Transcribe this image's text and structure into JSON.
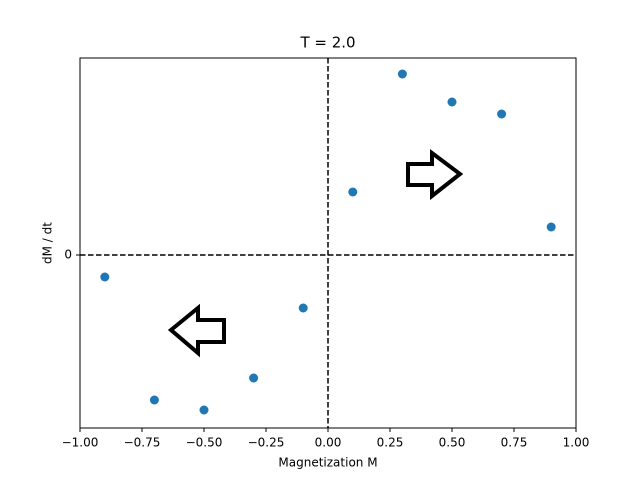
{
  "chart_data": {
    "type": "scatter",
    "title": "T = 2.0",
    "x_label": "Magnetization M",
    "y_label": "dM / dt",
    "x": [
      -0.9,
      -0.7,
      -0.5,
      -0.3,
      -0.1,
      0.1,
      0.3,
      0.5,
      0.7,
      0.9
    ],
    "values": [
      -0.22,
      -1.45,
      -1.55,
      -1.23,
      -0.53,
      0.63,
      1.81,
      1.53,
      1.41,
      0.28
    ],
    "color": "#1f77b4",
    "xlim": [
      -1,
      1
    ],
    "xticks": [
      {
        "value": -1,
        "label": "−1.00"
      },
      {
        "value": -0.75,
        "label": "−0.75"
      },
      {
        "value": -0.5,
        "label": "−0.50"
      },
      {
        "value": -0.25,
        "label": "−0.25"
      },
      {
        "value": 0,
        "label": "0.00"
      },
      {
        "value": 0.25,
        "label": "0.25"
      },
      {
        "value": 0.5,
        "label": "0.50"
      },
      {
        "value": 0.75,
        "label": "0.75"
      },
      {
        "value": 1,
        "label": "1.00"
      }
    ],
    "ylim": [
      -1.73,
      1.97
    ],
    "yticks": [
      0
    ]
  }
}
